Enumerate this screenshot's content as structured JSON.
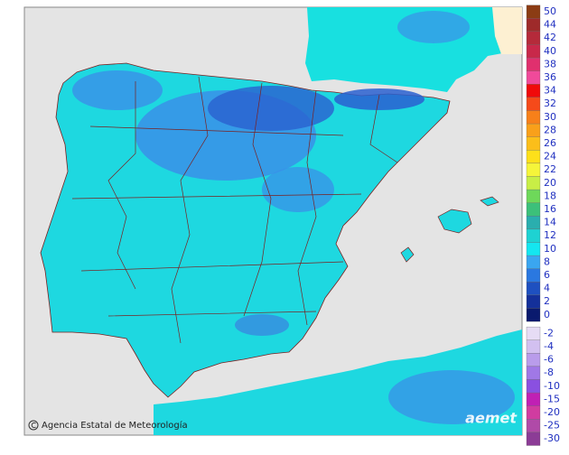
{
  "legend": {
    "items": [
      {
        "value": 50,
        "color": "#8b3c14"
      },
      {
        "value": 44,
        "color": "#9e2a2a"
      },
      {
        "value": 42,
        "color": "#b52a3a"
      },
      {
        "value": 40,
        "color": "#c8284a"
      },
      {
        "value": 38,
        "color": "#e0306e"
      },
      {
        "value": 36,
        "color": "#f04a9a"
      },
      {
        "value": 34,
        "color": "#f00a0a"
      },
      {
        "value": 32,
        "color": "#f54a1a"
      },
      {
        "value": 30,
        "color": "#f7801a"
      },
      {
        "value": 28,
        "color": "#f9a01a"
      },
      {
        "value": 26,
        "color": "#fbbe1a"
      },
      {
        "value": 24,
        "color": "#fde01a"
      },
      {
        "value": 22,
        "color": "#f5f53a"
      },
      {
        "value": 20,
        "color": "#c8ee46"
      },
      {
        "value": 18,
        "color": "#6ed85a"
      },
      {
        "value": 16,
        "color": "#3cc07a"
      },
      {
        "value": 14,
        "color": "#2aaeae"
      },
      {
        "value": 12,
        "color": "#1ed2d2"
      },
      {
        "value": 10,
        "color": "#14e6f0"
      },
      {
        "value": 8,
        "color": "#3aa6f0"
      },
      {
        "value": 6,
        "color": "#2a78e0"
      },
      {
        "value": 4,
        "color": "#1e50c0"
      },
      {
        "value": 2,
        "color": "#14309a"
      },
      {
        "value": 0,
        "color": "#0a1a6e"
      },
      {
        "value": -2,
        "color": "#e6dcf5"
      },
      {
        "value": -4,
        "color": "#d2c0f0"
      },
      {
        "value": -6,
        "color": "#b99ceb"
      },
      {
        "value": -8,
        "color": "#a078e6"
      },
      {
        "value": -10,
        "color": "#8a50e0"
      },
      {
        "value": -15,
        "color": "#c020b4"
      },
      {
        "value": -20,
        "color": "#d03ca0"
      },
      {
        "value": -25,
        "color": "#b04aa8"
      },
      {
        "value": -30,
        "color": "#8c3c96"
      }
    ]
  },
  "credit": {
    "text": "Agencia Estatal de Meteorología",
    "logo": "aemet"
  }
}
